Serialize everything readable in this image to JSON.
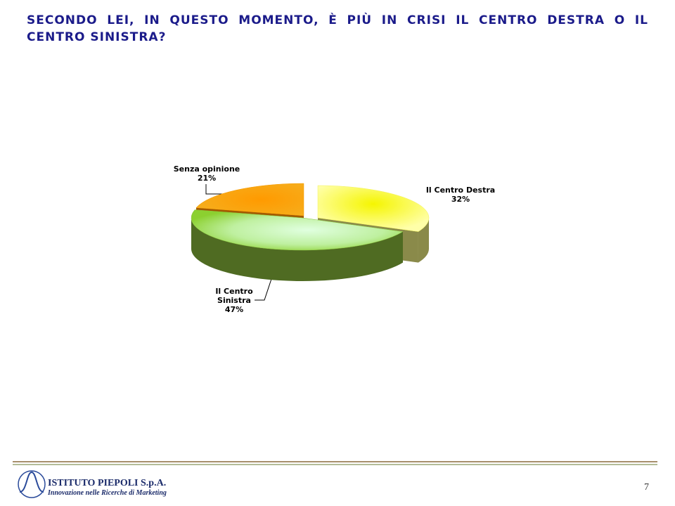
{
  "chart_data": {
    "type": "pie3d",
    "title": "SECONDO LEI, IN QUESTO MOMENTO, È PIÙ IN CRISI IL CENTRO DESTRA O IL CENTRO SINISTRA?",
    "categories": [
      "Il Centro Destra",
      "Il Centro Sinistra",
      "Senza opinione"
    ],
    "values": [
      32,
      47,
      21
    ],
    "value_labels": [
      "32%",
      "47%",
      "21%"
    ],
    "colors": [
      "#f2f25a",
      "#8cc63f",
      "#f59a00"
    ]
  },
  "footer": {
    "company": "ISTITUTO PIEPOLI S.p.A.",
    "tagline": "Innovazione nelle Ricerche di Marketing",
    "page_number": "7"
  }
}
